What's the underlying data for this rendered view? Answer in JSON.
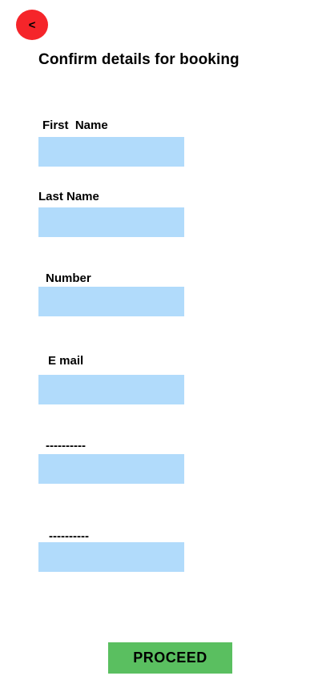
{
  "header": {
    "back_label": "<",
    "title": "Confirm details for booking"
  },
  "form": {
    "fields": [
      {
        "label": "First  Name",
        "value": "",
        "placeholder": ""
      },
      {
        "label": "Last Name",
        "value": "",
        "placeholder": ""
      },
      {
        "label": "Number",
        "value": "",
        "placeholder": ""
      },
      {
        "label": "E mail",
        "value": "",
        "placeholder": ""
      },
      {
        "label": "----------",
        "value": "",
        "placeholder": ""
      },
      {
        "label": "----------",
        "value": "",
        "placeholder": ""
      }
    ]
  },
  "actions": {
    "proceed_label": "PROCEED"
  },
  "colors": {
    "back_button": "#f5252a",
    "input_background": "#b1dbfb",
    "proceed_button": "#5abf60"
  }
}
